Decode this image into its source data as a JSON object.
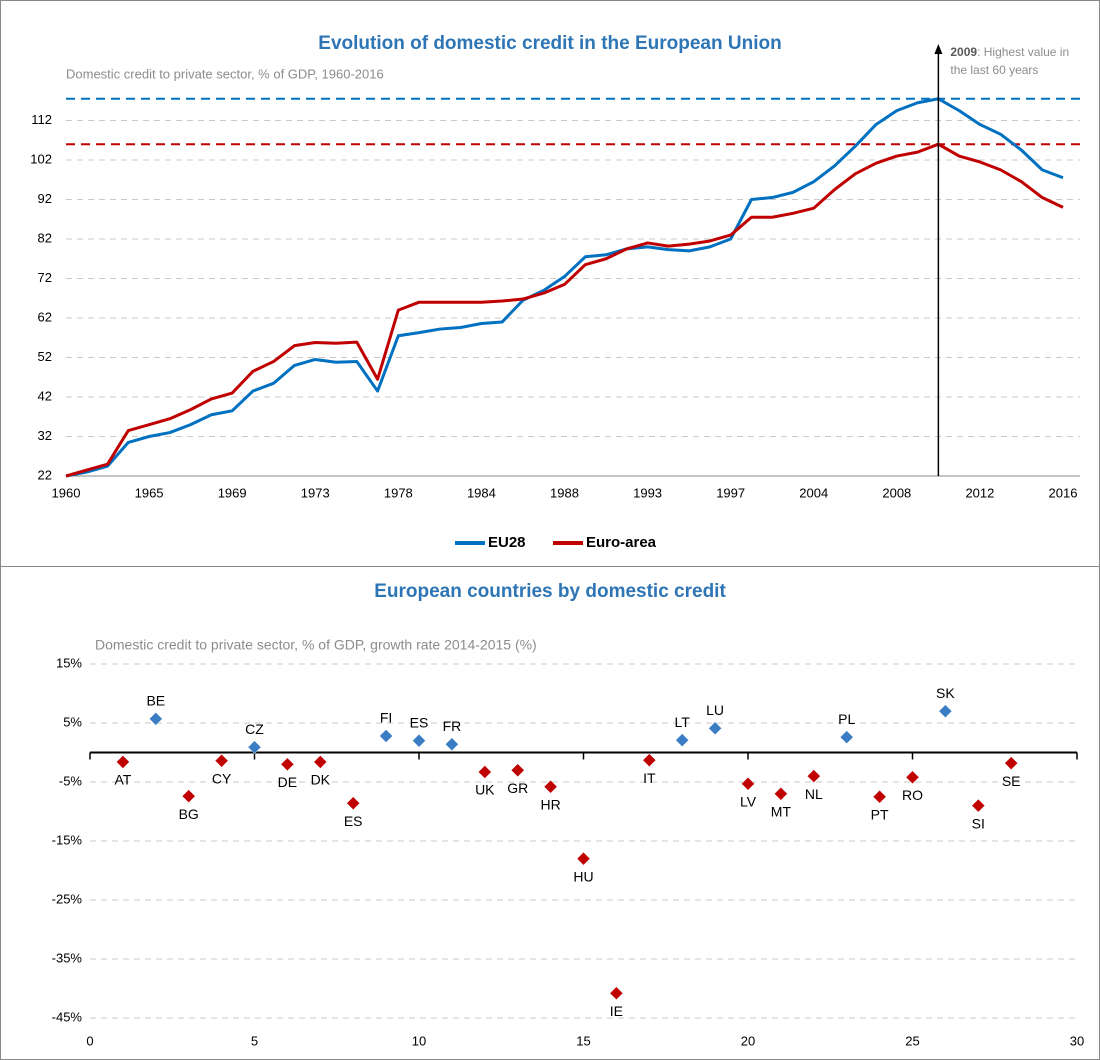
{
  "chart_data": [
    {
      "type": "line",
      "title": "Evolution of domestic credit in the European Union",
      "subtitle": "Domestic credit to private sector, % of GDP, 1960-2016",
      "categories": [
        "1960",
        null,
        null,
        null,
        "1965",
        null,
        null,
        null,
        "1969",
        null,
        null,
        null,
        "1973",
        null,
        null,
        null,
        "1978",
        null,
        null,
        null,
        "1984",
        null,
        null,
        null,
        "1988",
        null,
        null,
        null,
        "1993",
        null,
        null,
        null,
        "1997",
        null,
        null,
        null,
        "2004",
        null,
        null,
        null,
        "2008",
        null,
        null,
        null,
        "2012",
        null,
        null,
        null,
        "2016"
      ],
      "series": [
        {
          "name": "EU28",
          "color": "#0070c0",
          "values": [
            22,
            23,
            24.5,
            30.5,
            32,
            33,
            35,
            37.5,
            38.5,
            43.5,
            45.5,
            50,
            51.5,
            50.8,
            51,
            43.5,
            57.5,
            58.3,
            59.2,
            59.6,
            60.6,
            61,
            66.5,
            69,
            72.5,
            77.5,
            78,
            79.5,
            80,
            79.3,
            79,
            80,
            82,
            92,
            92.5,
            93.8,
            96.5,
            100.5,
            105.5,
            111,
            114.5,
            116.5,
            117.5,
            114.5,
            111,
            108.5,
            104.5,
            99.5,
            97.5
          ]
        },
        {
          "name": "Euro-area",
          "color": "#c00000",
          "values": [
            22,
            23.5,
            25,
            33.5,
            35,
            36.5,
            38.8,
            41.5,
            43,
            48.5,
            51,
            55,
            55.8,
            55.6,
            55.9,
            46.5,
            64,
            66,
            66,
            66,
            66,
            66.3,
            66.8,
            68.3,
            70.5,
            75.5,
            77,
            79.5,
            81,
            80.2,
            80.7,
            81.5,
            83,
            87.5,
            87.5,
            88.5,
            89.8,
            94.5,
            98.5,
            101.2,
            103,
            104,
            106,
            103,
            101.5,
            99.5,
            96.5,
            92.5,
            90
          ]
        }
      ],
      "reference_lines": [
        {
          "value": 117.5,
          "color": "#0070c0"
        },
        {
          "value": 106,
          "color": "#c00000"
        }
      ],
      "annotation": {
        "year": "2009",
        "lines": [
          ": Highest value in",
          "the last  60 years"
        ]
      },
      "ylim": [
        22,
        122
      ],
      "yticks": [
        22,
        32,
        42,
        52,
        62,
        72,
        82,
        92,
        102,
        112
      ],
      "grid": true,
      "legend": "bottom"
    },
    {
      "type": "scatter",
      "title": "European countries by domestic credit",
      "subtitle": "Domestic credit to private sector, % of GDP, growth rate 2014-2015 (%)",
      "series": [
        {
          "color": "#3a7dc4",
          "x": [
            2,
            5,
            9,
            10,
            11,
            18,
            19,
            23,
            26
          ],
          "values": [
            5.7,
            0.9,
            2.8,
            2,
            1.4,
            2.1,
            4.1,
            2.6,
            7
          ],
          "labels": [
            "BE",
            "CZ",
            "FI",
            "ES",
            "FR",
            "LT",
            "LU",
            "PL",
            "SK"
          ]
        },
        {
          "color": "#c00000",
          "x": [
            1,
            3,
            4,
            6,
            7,
            8,
            12,
            13,
            14,
            15,
            16,
            17,
            20,
            21,
            22,
            24,
            25,
            27,
            28
          ],
          "values": [
            -1.6,
            -7.4,
            -1.4,
            -2,
            -1.6,
            -8.6,
            -3.3,
            -3,
            -5.8,
            -18,
            -40.8,
            -1.3,
            -5.3,
            -7,
            -4,
            -7.5,
            -4.2,
            -9,
            -1.8
          ],
          "labels": [
            "AT",
            "BG",
            "CY",
            "DE",
            "DK",
            "ES",
            "UK",
            "GR",
            "HR",
            "HU",
            "IE",
            "IT",
            "LV",
            "MT",
            "NL",
            "PT",
            "RO",
            "SI",
            "SE"
          ]
        }
      ],
      "xlim": [
        0,
        30
      ],
      "xticks": [
        0,
        5,
        10,
        15,
        20,
        25,
        30
      ],
      "ylim": [
        -45,
        15
      ],
      "yticks": [
        {
          "value": -45,
          "label": "-45%"
        },
        {
          "value": -35,
          "label": "-35%"
        },
        {
          "value": -25,
          "label": "-25%"
        },
        {
          "value": -15,
          "label": "-15%"
        },
        {
          "value": -5,
          "label": "-5%"
        },
        {
          "value": 5,
          "label": "5%"
        },
        {
          "value": 15,
          "label": "15%"
        }
      ],
      "grid": true
    }
  ]
}
